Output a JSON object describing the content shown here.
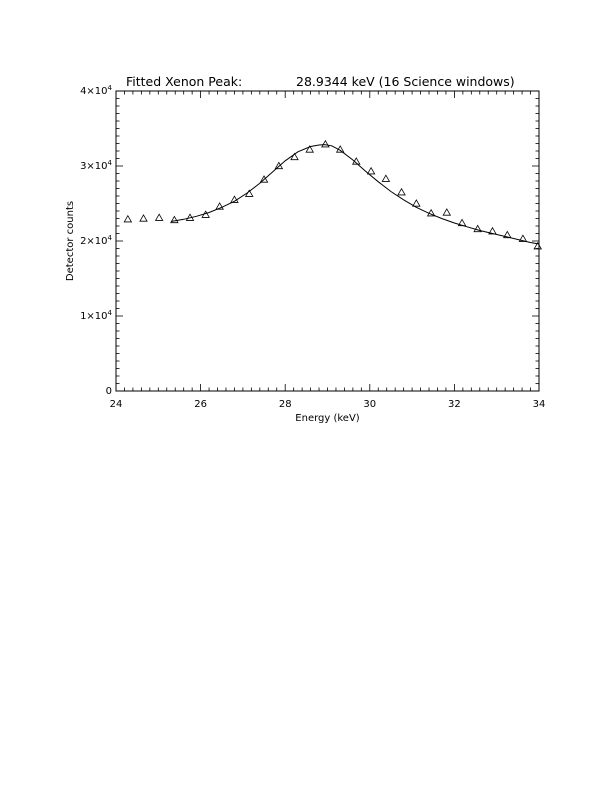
{
  "chart_data": {
    "type": "scatter",
    "title_left": "Fitted Xenon Peak:",
    "title_right": "28.9344 keV (16 Science windows)",
    "xlabel": "Energy (keV)",
    "ylabel": "Detector counts",
    "xlim": [
      24,
      34
    ],
    "ylim": [
      0,
      40000
    ],
    "x_ticks": [
      24,
      26,
      28,
      30,
      32,
      34
    ],
    "x_tick_labels": [
      "24",
      "26",
      "28",
      "30",
      "32",
      "34"
    ],
    "x_minor_step": 0.2,
    "y_ticks": [
      {
        "value": 0,
        "mantissa": "0",
        "exponent": ""
      },
      {
        "value": 10000,
        "mantissa": "1×10",
        "exponent": "4"
      },
      {
        "value": 20000,
        "mantissa": "2×10",
        "exponent": "4"
      },
      {
        "value": 30000,
        "mantissa": "3×10",
        "exponent": "4"
      },
      {
        "value": 40000,
        "mantissa": "4×10",
        "exponent": "4"
      }
    ],
    "y_minor_step": 1000,
    "grid": false,
    "marker": "triangle",
    "points": [
      {
        "x": 24.28,
        "y": 22900
      },
      {
        "x": 24.65,
        "y": 23000
      },
      {
        "x": 25.02,
        "y": 23100
      },
      {
        "x": 25.38,
        "y": 22800
      },
      {
        "x": 25.75,
        "y": 23100
      },
      {
        "x": 26.12,
        "y": 23500
      },
      {
        "x": 26.45,
        "y": 24600
      },
      {
        "x": 26.8,
        "y": 25500
      },
      {
        "x": 27.15,
        "y": 26300
      },
      {
        "x": 27.5,
        "y": 28200
      },
      {
        "x": 27.85,
        "y": 30000
      },
      {
        "x": 28.22,
        "y": 31200
      },
      {
        "x": 28.58,
        "y": 32200
      },
      {
        "x": 28.95,
        "y": 32900
      },
      {
        "x": 29.3,
        "y": 32200
      },
      {
        "x": 29.68,
        "y": 30600
      },
      {
        "x": 30.03,
        "y": 29300
      },
      {
        "x": 30.38,
        "y": 28300
      },
      {
        "x": 30.75,
        "y": 26500
      },
      {
        "x": 31.1,
        "y": 25000
      },
      {
        "x": 31.45,
        "y": 23700
      },
      {
        "x": 31.82,
        "y": 23800
      },
      {
        "x": 32.18,
        "y": 22400
      },
      {
        "x": 32.55,
        "y": 21600
      },
      {
        "x": 32.9,
        "y": 21300
      },
      {
        "x": 33.25,
        "y": 20800
      },
      {
        "x": 33.62,
        "y": 20300
      },
      {
        "x": 33.97,
        "y": 19300
      }
    ],
    "fit": {
      "x": [
        25.3,
        25.6,
        25.9,
        26.2,
        26.5,
        26.8,
        27.1,
        27.4,
        27.7,
        28.0,
        28.3,
        28.6,
        28.8,
        28.93,
        29.1,
        29.3,
        29.6,
        29.9,
        30.2,
        30.5,
        30.8,
        31.1,
        31.4,
        31.7,
        32.0,
        32.3,
        32.6,
        32.9,
        33.2,
        33.5,
        33.8,
        34.0
      ],
      "y": [
        22600,
        22900,
        23300,
        23800,
        24500,
        25300,
        26400,
        27700,
        29200,
        30700,
        31900,
        32600,
        32800,
        32850,
        32700,
        32100,
        30800,
        29300,
        27900,
        26600,
        25500,
        24500,
        23700,
        23000,
        22400,
        21900,
        21400,
        21000,
        20600,
        20200,
        19800,
        19600
      ]
    }
  }
}
